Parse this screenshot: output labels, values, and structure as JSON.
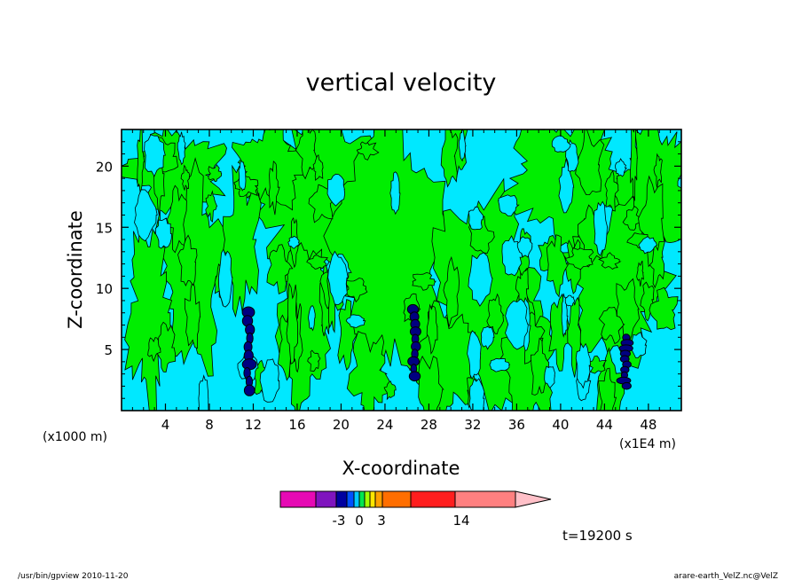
{
  "chart_data": {
    "type": "contour",
    "title": "vertical velocity",
    "xlabel": "X-coordinate",
    "ylabel": "Z-coordinate",
    "x_unit_label": "(x1000 m)",
    "x_scale_label": "(x1E4 m)",
    "xlim": [
      0,
      51
    ],
    "ylim": [
      0,
      23
    ],
    "x_ticks": [
      4,
      8,
      12,
      16,
      20,
      24,
      28,
      32,
      36,
      40,
      44,
      48
    ],
    "x_tick_labels": [
      "4",
      "8",
      "12",
      "16",
      "20",
      "24",
      "28",
      "32",
      "36",
      "40",
      "44",
      "48"
    ],
    "y_ticks": [
      5,
      10,
      15,
      20
    ],
    "y_tick_labels": [
      "5",
      "10",
      "15",
      "20"
    ],
    "fill_colors": {
      "negative_weak": "#00e8ff",
      "positive_weak": "#00ee00",
      "strong_negative": "#000080",
      "contour_line": "#000000"
    },
    "updrafts": [
      {
        "x": 11.6,
        "z_bottom": 1.3,
        "z_top": 8.4
      },
      {
        "x": 26.7,
        "z_bottom": 2.5,
        "z_top": 8.6
      },
      {
        "x": 45.9,
        "z_bottom": 1.8,
        "z_top": 6.2
      }
    ],
    "colorbar": {
      "colors": [
        "#e60ab4",
        "#7f14be",
        "#0000a0",
        "#0050ff",
        "#00c8ff",
        "#00e650",
        "#a0ff00",
        "#ffe600",
        "#ffa000",
        "#ff6e00",
        "#ff1e1e",
        "#ff8080",
        "#ffc0c8"
      ],
      "tick_labels": [
        "-3",
        "0",
        "3",
        "14"
      ]
    },
    "time_label": "t=19200 s"
  },
  "footer": {
    "left": "/usr/bin/gpview   2010-11-20",
    "right": "arare-earth_VelZ.nc@VelZ"
  }
}
